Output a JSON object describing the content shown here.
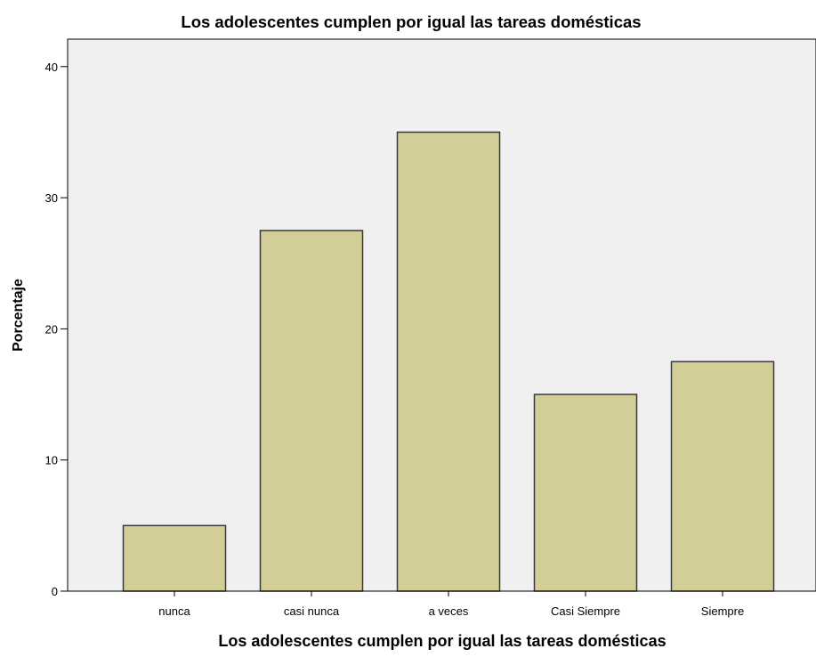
{
  "chart_data": {
    "type": "bar",
    "title": "Los adolescentes cumplen por igual las tareas domésticas",
    "xlabel": "Los adolescentes cumplen por igual las tareas domésticas",
    "ylabel": "Porcentaje",
    "categories": [
      "nunca",
      "casi nunca",
      "a veces",
      "Casi Siempre",
      "Siempre"
    ],
    "values": [
      5.0,
      27.5,
      35.0,
      15.0,
      17.5
    ],
    "ylim": [
      0,
      42
    ],
    "yticks": [
      0,
      10,
      20,
      30,
      40
    ],
    "grid": false,
    "legend": "none",
    "colors": {
      "bar_fill": "#d3ce97",
      "bar_stroke": "#3a3a3a",
      "plot_background": "#f0f0f0",
      "axis": "#000000",
      "text": "#000000"
    }
  }
}
